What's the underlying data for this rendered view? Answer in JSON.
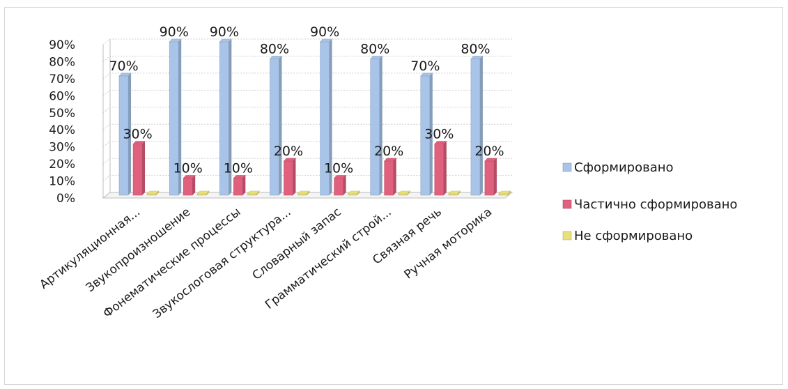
{
  "chart_data": {
    "type": "bar",
    "categories": [
      "Артикуляционная...",
      "Звукопроизношение",
      "Фонематические процессы",
      "Звукослоговая структура...",
      "Словарный запас",
      "Грамматический строй...",
      "Связная речь",
      "Ручная моторика"
    ],
    "series": [
      {
        "name": "Сформировано",
        "color": "#a8c4e8",
        "values": [
          70,
          90,
          90,
          80,
          90,
          80,
          70,
          80
        ],
        "labels": [
          "70%",
          "90%",
          "90%",
          "80%",
          "90%",
          "80%",
          "70%",
          "80%"
        ]
      },
      {
        "name": "Частично сформировано",
        "color": "#e0607e",
        "values": [
          30,
          10,
          10,
          20,
          10,
          20,
          30,
          20
        ],
        "labels": [
          "30%",
          "10%",
          "10%",
          "20%",
          "10%",
          "20%",
          "30%",
          "20%"
        ]
      },
      {
        "name": "Не сформировано",
        "color": "#e8e07a",
        "values": [
          0,
          0,
          0,
          0,
          0,
          0,
          0,
          0
        ],
        "labels": [
          "",
          "",
          "",
          "",
          "",
          "",
          "",
          ""
        ]
      }
    ],
    "y_ticks": [
      "0%",
      "10%",
      "20%",
      "30%",
      "40%",
      "50%",
      "60%",
      "70%",
      "80%",
      "90%"
    ],
    "ylim": [
      0,
      90
    ],
    "grid": true,
    "legend_position": "right",
    "title": "",
    "xlabel": "",
    "ylabel": ""
  }
}
